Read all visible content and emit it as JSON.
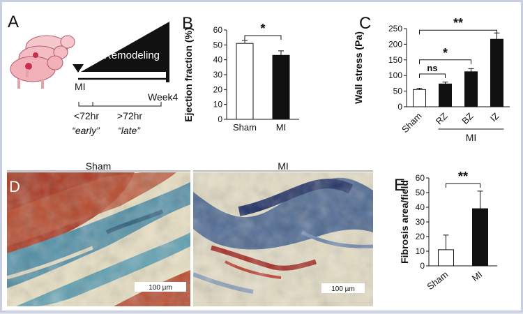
{
  "panels": {
    "A": {
      "letter": "A",
      "remodeling": "Remodeling",
      "mi": "MI",
      "week": "Week4",
      "early_time": "<72hr",
      "early_label": "“early”",
      "late_time": ">72hr",
      "late_label": "“late”"
    },
    "D": {
      "letter": "D",
      "sham_label": "Sham",
      "mi_label": "MI",
      "scale_bar_sham": "100 µm",
      "scale_bar_mi": "100 µm"
    }
  },
  "chart_data": [
    {
      "id": "B",
      "letter": "B",
      "type": "bar",
      "ylabel": "Ejection fraction (%)",
      "ylim": [
        0,
        60
      ],
      "yticks": [
        0,
        10,
        20,
        30,
        40,
        50,
        60
      ],
      "categories": [
        "Sham",
        "MI"
      ],
      "values": [
        51,
        43
      ],
      "errors": [
        2,
        3
      ],
      "fills": [
        "#ffffff",
        "#111111"
      ],
      "significance": [
        {
          "from": 0,
          "to": 1,
          "label": "*"
        }
      ]
    },
    {
      "id": "C",
      "letter": "C",
      "type": "bar",
      "ylabel": "Wall stress (Pa)",
      "ylim": [
        0,
        250
      ],
      "yticks": [
        0,
        50,
        100,
        150,
        200,
        250
      ],
      "categories": [
        "Sham",
        "RZ",
        "BZ",
        "IZ"
      ],
      "values": [
        55,
        73,
        112,
        216
      ],
      "errors": [
        4,
        6,
        10,
        20
      ],
      "fills": [
        "#ffffff",
        "#111111",
        "#111111",
        "#111111"
      ],
      "group_label": "MI",
      "significance": [
        {
          "from": 0,
          "to": 1,
          "label": "ns"
        },
        {
          "from": 0,
          "to": 2,
          "label": "*"
        },
        {
          "from": 0,
          "to": 3,
          "label": "**"
        }
      ]
    },
    {
      "id": "E",
      "letter": "E",
      "type": "bar",
      "ylabel": "Fibrosis area/field",
      "ylim": [
        0,
        60
      ],
      "yticks": [
        0,
        10,
        20,
        30,
        40,
        50,
        60
      ],
      "categories": [
        "Sham",
        "MI"
      ],
      "values": [
        11,
        39
      ],
      "errors": [
        10,
        12
      ],
      "fills": [
        "#ffffff",
        "#111111"
      ],
      "significance": [
        {
          "from": 0,
          "to": 1,
          "label": "**"
        }
      ]
    }
  ]
}
